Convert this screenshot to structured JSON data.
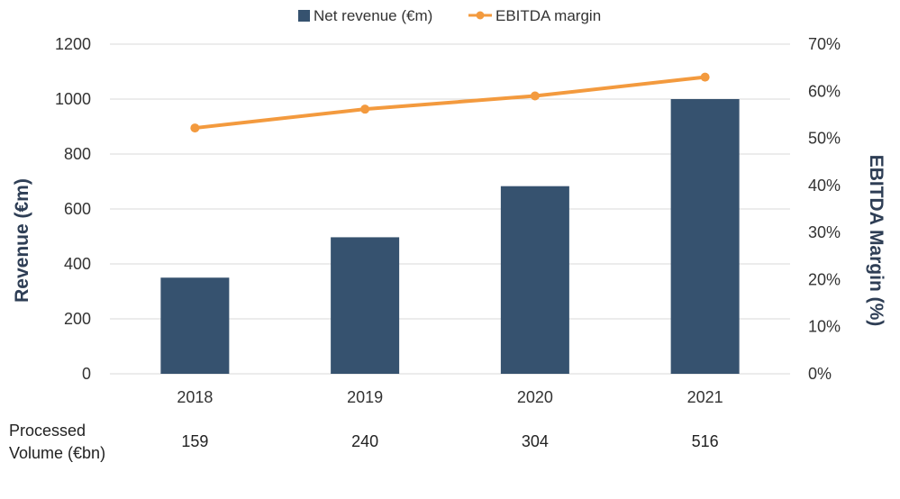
{
  "chart_data": {
    "type": "bar",
    "categories": [
      "2018",
      "2019",
      "2020",
      "2021"
    ],
    "series": [
      {
        "name": "Net revenue (€m)",
        "type": "bar",
        "axis": "left",
        "values": [
          350,
          497,
          683,
          1000
        ],
        "color": "#36526f"
      },
      {
        "name": "EBITDA margin",
        "type": "line",
        "axis": "right",
        "values": [
          52.2,
          56.2,
          59.0,
          63.0
        ],
        "color": "#f39a3e"
      }
    ],
    "ylabel": "Revenue (€m)",
    "ylim": [
      0,
      1200
    ],
    "yticks": [
      "0",
      "200",
      "400",
      "600",
      "800",
      "1000",
      "1200"
    ],
    "y2label": "EBITDA  Margin (%)",
    "y2lim": [
      0,
      70
    ],
    "y2ticks": [
      "0%",
      "10%",
      "20%",
      "30%",
      "40%",
      "50%",
      "60%",
      "70%"
    ],
    "grid": true,
    "legend_position": "top-center",
    "processed_volume": {
      "label_line1": "Processed",
      "label_line2": "Volume (€bn)",
      "values": [
        "159",
        "240",
        "304",
        "516"
      ]
    }
  }
}
